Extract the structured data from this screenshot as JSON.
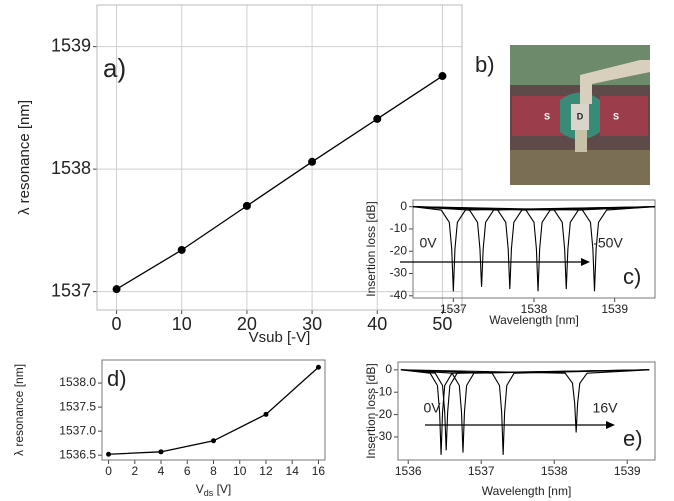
{
  "chart_data": [
    {
      "type": "line",
      "panel_label": "a)",
      "xlabel": "Vsub [-V]",
      "ylabel": "λ resonance [nm]",
      "x": [
        0,
        10,
        20,
        30,
        40,
        50
      ],
      "values": [
        1537.02,
        1537.34,
        1537.7,
        1538.06,
        1538.41,
        1538.76
      ],
      "color": "#000000",
      "xlim": [
        -3,
        53
      ],
      "ylim": [
        1536.85,
        1539.34
      ],
      "xticks": [
        0,
        10,
        20,
        30,
        40,
        50
      ],
      "yticks": [
        1537,
        1538,
        1539
      ],
      "grid": true
    },
    {
      "type": "spectra",
      "panel_label": "c)",
      "xlabel": "Wavelength [nm]",
      "ylabel": "Insertion loss [dB]",
      "arrow_start_label": "0V",
      "arrow_end_label": "-50V",
      "xlim": [
        1536.5,
        1539.5
      ],
      "ylim": [
        -41,
        3
      ],
      "xticks": [
        1537,
        1538,
        1539
      ],
      "yticks": [
        0,
        -10,
        -20,
        -30,
        -40
      ],
      "grid": false,
      "series": [
        {
          "color": "#000000",
          "x": [
            1536.5,
            1536.85,
            1536.95,
            1536.98,
            1537.0,
            1537.02,
            1537.05,
            1537.15,
            1539.5
          ],
          "values": [
            0,
            -1.5,
            -7,
            -19,
            -38,
            -19,
            -7,
            -1.5,
            0
          ]
        },
        {
          "color": "#000000",
          "x": [
            1536.5,
            1537.2,
            1537.3,
            1537.33,
            1537.35,
            1537.37,
            1537.4,
            1537.5,
            1539.5
          ],
          "values": [
            0,
            -1.5,
            -7,
            -19,
            -36,
            -19,
            -7,
            -1.5,
            0
          ]
        },
        {
          "color": "#000000",
          "x": [
            1536.5,
            1537.55,
            1537.65,
            1537.68,
            1537.7,
            1537.72,
            1537.75,
            1537.85,
            1539.5
          ],
          "values": [
            0,
            -1.5,
            -7,
            -19,
            -37,
            -19,
            -7,
            -1.5,
            0
          ]
        },
        {
          "color": "#000000",
          "x": [
            1536.5,
            1537.9,
            1538.0,
            1538.03,
            1538.05,
            1538.07,
            1538.1,
            1538.2,
            1539.5
          ],
          "values": [
            0,
            -1.5,
            -7,
            -19,
            -38,
            -19,
            -7,
            -1.5,
            0
          ]
        },
        {
          "color": "#000000",
          "x": [
            1536.5,
            1538.25,
            1538.35,
            1538.38,
            1538.4,
            1538.42,
            1538.45,
            1538.55,
            1539.5
          ],
          "values": [
            0,
            -1.5,
            -7,
            -19,
            -37,
            -19,
            -7,
            -1.5,
            0
          ]
        },
        {
          "color": "#000000",
          "x": [
            1536.5,
            1538.6,
            1538.7,
            1538.73,
            1538.75,
            1538.77,
            1538.8,
            1538.9,
            1539.5
          ],
          "values": [
            0,
            -1.5,
            -7,
            -19,
            -38,
            -19,
            -7,
            -1.5,
            0
          ]
        }
      ]
    },
    {
      "type": "line",
      "panel_label": "d)",
      "xlabel": "V",
      "xlabel_sub": "ds",
      "xlabel_unit": " [V]",
      "ylabel": "λ resonance [nm]",
      "x": [
        0,
        4,
        8,
        12,
        16
      ],
      "values": [
        1536.52,
        1536.57,
        1536.8,
        1537.35,
        1538.33
      ],
      "color": "#000000",
      "xlim": [
        -0.5,
        16.5
      ],
      "ylim": [
        1536.4,
        1538.48
      ],
      "xticks": [
        0,
        2,
        4,
        6,
        8,
        10,
        12,
        14,
        16
      ],
      "yticks": [
        1536.5,
        {
          "value": 1537,
          "label": "1537.0"
        },
        1537.5,
        {
          "value": 1538,
          "label": "1538.0"
        }
      ],
      "grid": false
    },
    {
      "type": "spectra",
      "panel_label": "e)",
      "xlabel": "Wavelength [nm]",
      "ylabel": "Insertion loss [dB]",
      "arrow_start_label": "0V",
      "arrow_end_label": "16V",
      "xlim": [
        1535.86,
        1539.38
      ],
      "ylim": [
        -40.3,
        3.5
      ],
      "xticks": [
        1536,
        1537,
        1538,
        1539
      ],
      "yticks": [
        0,
        -10,
        -20,
        -30
      ],
      "grid": false,
      "series": [
        {
          "color": "#000000",
          "x": [
            1535.9,
            1536.3,
            1536.4,
            1536.43,
            1536.45,
            1536.47,
            1536.5,
            1536.6,
            1539.3
          ],
          "values": [
            0,
            -1.5,
            -7,
            -19,
            -38,
            -19,
            -7,
            -1.5,
            0
          ]
        },
        {
          "color": "#000000",
          "x": [
            1535.9,
            1536.37,
            1536.47,
            1536.5,
            1536.52,
            1536.54,
            1536.57,
            1536.67,
            1539.3
          ],
          "values": [
            0,
            -1.5,
            -7,
            -19,
            -36,
            -19,
            -7,
            -1.5,
            0
          ]
        },
        {
          "color": "#000000",
          "x": [
            1535.9,
            1536.6,
            1536.7,
            1536.73,
            1536.75,
            1536.77,
            1536.8,
            1536.9,
            1539.3
          ],
          "values": [
            0,
            -1.5,
            -7,
            -19,
            -37,
            -19,
            -7,
            -1.5,
            0
          ]
        },
        {
          "color": "#000000",
          "x": [
            1535.9,
            1537.15,
            1537.25,
            1537.28,
            1537.3,
            1537.32,
            1537.35,
            1537.45,
            1539.3
          ],
          "values": [
            0,
            -1.5,
            -7,
            -19,
            -38,
            -19,
            -7,
            -1.5,
            0
          ]
        },
        {
          "color": "#000000",
          "x": [
            1535.9,
            1538.15,
            1538.25,
            1538.28,
            1538.3,
            1538.32,
            1538.35,
            1538.45,
            1539.3
          ],
          "values": [
            0,
            -1.5,
            -6,
            -15,
            -28,
            -15,
            -6,
            -1.5,
            0
          ]
        }
      ]
    }
  ],
  "figure_b": {
    "panel_label": "b)",
    "markers": [
      "S",
      "D",
      "S"
    ]
  }
}
